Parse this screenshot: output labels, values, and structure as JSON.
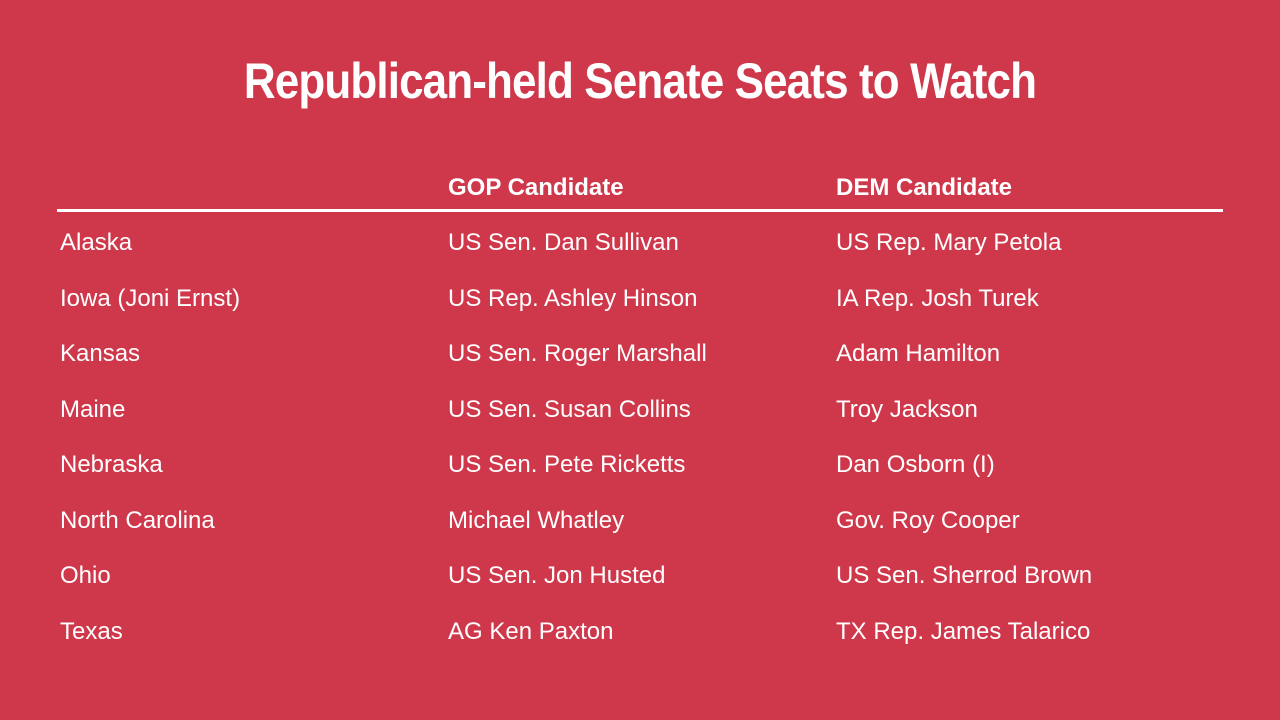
{
  "header": {
    "title": "Republican-held Senate Seats to Watch"
  },
  "table": {
    "columns": [
      "",
      "GOP Candidate",
      "DEM Candidate"
    ],
    "rows": [
      [
        "Alaska",
        "US Sen. Dan Sullivan",
        "US Rep. Mary Petola"
      ],
      [
        "Iowa (Joni Ernst)",
        "US Rep. Ashley Hinson",
        "IA Rep. Josh Turek"
      ],
      [
        "Kansas",
        "US Sen. Roger Marshall",
        "Adam Hamilton"
      ],
      [
        "Maine",
        "US Sen. Susan Collins",
        "Troy Jackson"
      ],
      [
        "Nebraska",
        "US Sen. Pete Ricketts",
        "Dan Osborn (I)"
      ],
      [
        "North Carolina",
        "Michael Whatley",
        "Gov. Roy Cooper"
      ],
      [
        "Ohio",
        "US Sen. Jon Husted",
        "US Sen. Sherrod Brown"
      ],
      [
        "Texas",
        "AG Ken Paxton",
        "TX Rep. James Talarico"
      ]
    ]
  }
}
